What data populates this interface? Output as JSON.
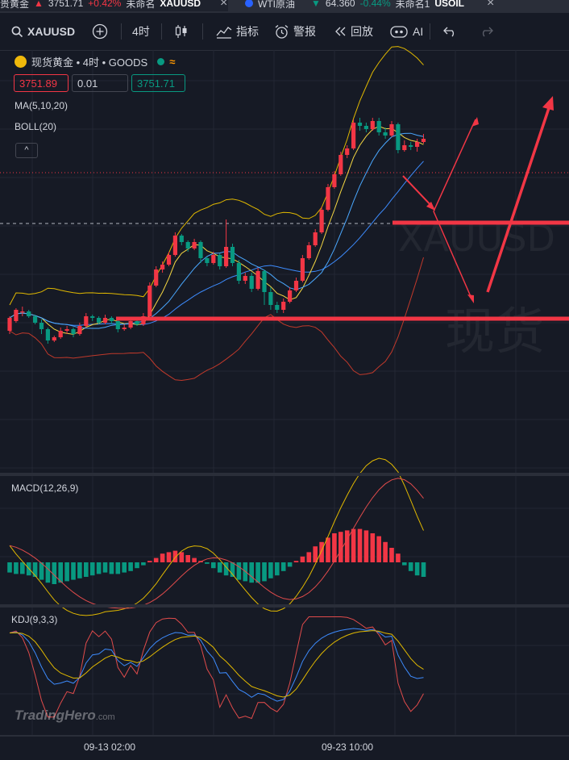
{
  "tabs": [
    {
      "title": "贵黄金",
      "arrow": "▲",
      "price": "3751.71",
      "change": "+0.42%",
      "status": "未命名",
      "symbol": "XAUUSD",
      "close": "×"
    },
    {
      "title": "WTI原油",
      "arrow": "▼",
      "price": "64.360",
      "change": "-0.44%",
      "status": "未命名1",
      "symbol": "USOIL",
      "close": "×"
    }
  ],
  "toolbar": {
    "symbol": "XAUUSD",
    "add_icon": "plus-circle-icon",
    "interval": "4时",
    "chart_type_icon": "candles-icon",
    "indicators": "指标",
    "alerts": "警报",
    "replay": "回放",
    "ai": "AI",
    "undo_icon": "undo-icon",
    "redo_icon": "redo-icon"
  },
  "legend": {
    "title": "现货黄金 • 4时 • GOODS",
    "status_icon": "market-open-dot",
    "wave_icon": "≈",
    "sell_price": "3751.89",
    "quantity": "0.01",
    "buy_price": "3751.71",
    "ma": "MA(5,10,20)",
    "boll": "BOLL(20)",
    "collapse_icon": "^"
  },
  "watermark": {
    "symbol": "XAUUSD",
    "name": "现货"
  },
  "macd_label": "MACD(12,26,9)",
  "kdj_label": "KDJ(9,3,3)",
  "brand": {
    "name": "TradingHero",
    "suffix": ".com"
  },
  "x_axis": [
    "09-13 02:00",
    "09-23 10:00"
  ],
  "colors": {
    "up": "#f23645",
    "down": "#089981",
    "background": "#161a25",
    "annotation": "#f23645"
  },
  "chart_data": {
    "type": "candlestick",
    "title": "现货黄金 • 4时 • GOODS",
    "x_ticks": [
      "09-13 02:00",
      "09-23 10:00"
    ],
    "last_price": 3751.71,
    "indicators": [
      "MA(5,10,20)",
      "BOLL(20)",
      "MACD(12,26,9)",
      "KDJ(9,3,3)"
    ],
    "candles_note": "approximate 4h OHLC sequence read from the chart shape",
    "candles": [
      [
        -1.0,
        -0.6,
        -0.55,
        -1.1
      ],
      [
        -0.7,
        -0.35,
        -0.3,
        -0.75
      ],
      [
        -0.4,
        -0.4,
        -0.25,
        -0.55
      ],
      [
        -0.4,
        -0.55,
        -0.35,
        -0.6
      ],
      [
        -0.55,
        -0.75,
        -0.5,
        -0.8
      ],
      [
        -0.75,
        -0.95,
        -0.65,
        -1.1
      ],
      [
        -0.95,
        -1.3,
        -0.9,
        -1.4
      ],
      [
        -1.3,
        -1.2,
        -1.15,
        -1.35
      ],
      [
        -1.2,
        -1.0,
        -0.9,
        -1.25
      ],
      [
        -1.0,
        -0.95,
        -0.85,
        -1.1
      ],
      [
        -0.95,
        -1.1,
        -0.9,
        -1.2
      ],
      [
        -1.1,
        -0.85,
        -0.75,
        -1.15
      ],
      [
        -0.85,
        -0.55,
        -0.45,
        -0.9
      ],
      [
        -0.55,
        -0.6,
        -0.5,
        -0.7
      ],
      [
        -0.6,
        -0.75,
        -0.55,
        -0.8
      ],
      [
        -0.75,
        -0.6,
        -0.5,
        -0.8
      ],
      [
        -0.6,
        -0.7,
        -0.55,
        -0.8
      ],
      [
        -0.7,
        -0.95,
        -0.65,
        -1.05
      ],
      [
        -0.95,
        -0.9,
        -0.8,
        -1.0
      ],
      [
        -0.9,
        -0.7,
        -0.6,
        -0.95
      ],
      [
        -0.7,
        -0.8,
        -0.65,
        -0.85
      ],
      [
        -0.8,
        -0.55,
        -0.45,
        -0.85
      ],
      [
        -0.55,
        0.4,
        0.5,
        -0.6
      ],
      [
        0.4,
        0.9,
        1.0,
        0.35
      ],
      [
        0.9,
        1.05,
        1.15,
        0.8
      ],
      [
        1.05,
        1.35,
        1.45,
        1.0
      ],
      [
        1.35,
        1.95,
        2.05,
        1.3
      ],
      [
        1.95,
        1.75,
        2.0,
        1.65
      ],
      [
        1.75,
        1.55,
        1.8,
        1.45
      ],
      [
        1.55,
        1.75,
        1.85,
        1.5
      ],
      [
        1.75,
        1.25,
        1.8,
        1.1
      ],
      [
        1.25,
        1.1,
        1.3,
        1.0
      ],
      [
        1.1,
        1.35,
        1.45,
        1.05
      ],
      [
        1.35,
        1.0,
        1.4,
        0.9
      ],
      [
        1.0,
        1.6,
        2.45,
        0.95
      ],
      [
        1.6,
        1.1,
        1.7,
        1.0
      ],
      [
        1.1,
        0.55,
        1.2,
        0.45
      ],
      [
        0.55,
        0.7,
        0.8,
        0.45
      ],
      [
        0.7,
        0.3,
        0.8,
        0.2
      ],
      [
        0.3,
        0.85,
        0.95,
        0.25
      ],
      [
        0.85,
        0.2,
        0.9,
        -0.2
      ],
      [
        0.2,
        -0.2,
        0.35,
        -0.35
      ],
      [
        -0.2,
        -0.35,
        -0.1,
        -0.45
      ],
      [
        -0.35,
        -0.1,
        0.0,
        -0.45
      ],
      [
        -0.1,
        0.25,
        0.35,
        -0.15
      ],
      [
        0.25,
        0.55,
        0.65,
        0.2
      ],
      [
        0.55,
        1.25,
        1.35,
        0.5
      ],
      [
        1.25,
        1.65,
        1.75,
        1.2
      ],
      [
        1.65,
        2.05,
        2.15,
        1.6
      ],
      [
        2.05,
        2.75,
        2.85,
        2.0
      ],
      [
        2.75,
        3.45,
        3.55,
        2.7
      ],
      [
        3.45,
        3.85,
        3.95,
        3.4
      ],
      [
        3.85,
        4.45,
        4.55,
        3.8
      ],
      [
        4.45,
        4.65,
        4.75,
        4.35
      ],
      [
        4.65,
        5.45,
        5.55,
        4.6
      ],
      [
        5.45,
        5.35,
        5.6,
        5.2
      ],
      [
        5.35,
        5.25,
        5.45,
        5.15
      ],
      [
        5.25,
        5.5,
        5.6,
        5.2
      ],
      [
        5.5,
        5.15,
        5.6,
        5.05
      ],
      [
        5.15,
        5.05,
        5.3,
        4.95
      ],
      [
        5.05,
        5.4,
        5.5,
        5.0
      ],
      [
        5.4,
        4.6,
        5.45,
        4.5
      ],
      [
        4.6,
        4.75,
        4.9,
        4.55
      ],
      [
        4.75,
        4.7,
        4.85,
        4.6
      ],
      [
        4.7,
        4.85,
        4.95,
        4.55
      ],
      [
        4.85,
        4.95,
        5.1,
        4.8
      ]
    ],
    "macd_hist": [
      -0.35,
      -0.4,
      -0.4,
      -0.45,
      -0.5,
      -0.6,
      -0.7,
      -0.75,
      -0.7,
      -0.65,
      -0.6,
      -0.55,
      -0.5,
      -0.45,
      -0.4,
      -0.35,
      -0.4,
      -0.4,
      -0.35,
      -0.3,
      -0.2,
      -0.1,
      0.05,
      0.15,
      0.3,
      0.35,
      0.4,
      0.35,
      0.25,
      0.15,
      0.05,
      -0.05,
      -0.2,
      -0.35,
      -0.45,
      -0.5,
      -0.6,
      -0.65,
      -0.7,
      -0.7,
      -0.65,
      -0.55,
      -0.45,
      -0.3,
      -0.15,
      0.05,
      0.2,
      0.35,
      0.55,
      0.7,
      0.85,
      1.0,
      1.05,
      1.1,
      1.15,
      1.15,
      1.1,
      1.0,
      0.9,
      0.7,
      0.5,
      0.3,
      -0.1,
      -0.3,
      -0.45,
      -0.5
    ]
  }
}
